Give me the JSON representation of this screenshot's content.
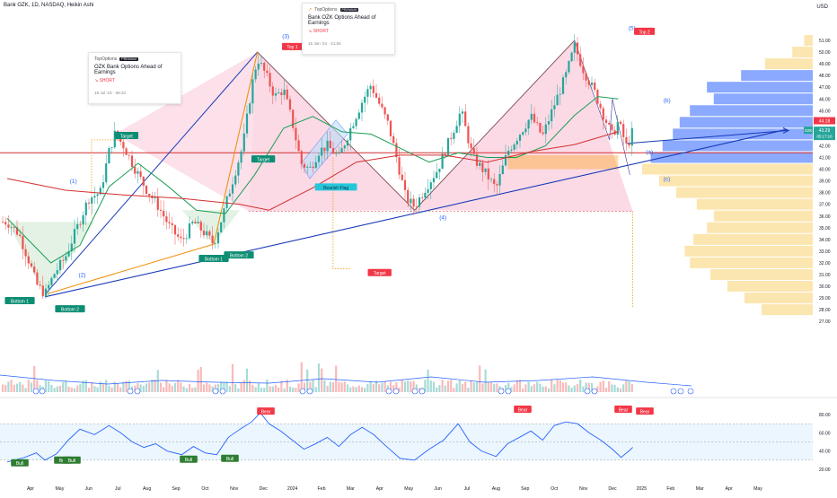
{
  "header": {
    "symbol_line": "Bank OZK, 1D, NASDAQ, Heikin Ashi",
    "currency": "USD"
  },
  "ideas": [
    {
      "brand": "TopOptions",
      "badge": "PREMIUM",
      "title": "OZK Bank Options Ahead of Earnings",
      "side": "SHORT",
      "date": "19 Jul '23 · 08:22"
    },
    {
      "brand": "TopOptions",
      "badge": "PREMIUM",
      "title": "Bank OZK Options Ahead of Earnings",
      "side": "SHORT",
      "date": "15 Jan '24 · 21:55"
    }
  ],
  "price_badges": {
    "current_symbol": "OZK",
    "current": "43.29",
    "countdown": "05:17:18",
    "red": "44.18"
  },
  "annotations": {
    "waves": [
      "(1)",
      "(2)",
      "(3)",
      "(4)",
      "(5)",
      "(a)",
      "(b)",
      "(c)"
    ],
    "labels": {
      "top1": "Top 1",
      "top2": "Top 2",
      "bottom1": "Bottom 1",
      "bottom2": "Bottom 2",
      "bottom1b": "Bottom 1",
      "bottom2b": "Bottom 2",
      "target": "Target",
      "bearish_flag": "Bearish Flag",
      "bull": "Bull",
      "bear": "Bear"
    }
  },
  "colors": {
    "up": "#26a69a",
    "down": "#ef5350",
    "ma_green": "#1b9e57",
    "ma_red": "#d32f2f",
    "trend_blue": "#1a3bb8",
    "fib_orange": "#f08c00",
    "rsi": "#2962ff"
  },
  "chart_data": [
    {
      "type": "candlestick",
      "title": "",
      "price_axis": {
        "ylim": [
          26.8,
          52.0
        ],
        "ticks": [
          "51.00",
          "50.00",
          "49.00",
          "48.00",
          "47.00",
          "46.00",
          "45.00",
          "44.00",
          "43.00",
          "42.00",
          "41.00",
          "40.00",
          "39.00",
          "38.00",
          "37.00",
          "36.00",
          "35.00",
          "34.00",
          "33.00",
          "32.00",
          "31.00",
          "30.00",
          "29.00",
          "28.00",
          "27.00"
        ]
      },
      "time_axis": {
        "ticks": [
          "Apr",
          "May",
          "Jun",
          "Jul",
          "Aug",
          "Sep",
          "Oct",
          "Nov",
          "Dec",
          "2024",
          "Feb",
          "Mar",
          "Apr",
          "May",
          "Jun",
          "Jul",
          "Aug",
          "Sep",
          "Oct",
          "Nov",
          "Dec",
          "2025",
          "Feb",
          "Mar",
          "Apr",
          "May"
        ]
      },
      "close_path": [
        {
          "m": 0.0,
          "p": 35.5
        },
        {
          "m": 0.4,
          "p": 34.5
        },
        {
          "m": 0.8,
          "p": 31.8
        },
        {
          "m": 1.0,
          "p": 30.2
        },
        {
          "m": 1.3,
          "p": 29.3
        },
        {
          "m": 1.6,
          "p": 31.0
        },
        {
          "m": 2.0,
          "p": 32.5
        },
        {
          "m": 2.4,
          "p": 35.0
        },
        {
          "m": 2.8,
          "p": 37.5
        },
        {
          "m": 3.2,
          "p": 38.0
        },
        {
          "m": 3.5,
          "p": 41.5
        },
        {
          "m": 3.7,
          "p": 43.0
        },
        {
          "m": 4.0,
          "p": 42.0
        },
        {
          "m": 4.4,
          "p": 40.0
        },
        {
          "m": 4.8,
          "p": 38.2
        },
        {
          "m": 5.2,
          "p": 36.8
        },
        {
          "m": 5.6,
          "p": 35.0
        },
        {
          "m": 6.0,
          "p": 33.8
        },
        {
          "m": 6.4,
          "p": 35.5
        },
        {
          "m": 6.8,
          "p": 34.5
        },
        {
          "m": 7.1,
          "p": 33.6
        },
        {
          "m": 7.4,
          "p": 36.0
        },
        {
          "m": 7.8,
          "p": 39.5
        },
        {
          "m": 8.1,
          "p": 42.0
        },
        {
          "m": 8.4,
          "p": 47.0
        },
        {
          "m": 8.6,
          "p": 49.5
        },
        {
          "m": 8.9,
          "p": 48.0
        },
        {
          "m": 9.2,
          "p": 46.2
        },
        {
          "m": 9.5,
          "p": 46.8
        },
        {
          "m": 9.8,
          "p": 44.0
        },
        {
          "m": 10.1,
          "p": 40.5
        },
        {
          "m": 10.4,
          "p": 40.0
        },
        {
          "m": 10.7,
          "p": 41.5
        },
        {
          "m": 11.0,
          "p": 42.0
        },
        {
          "m": 11.4,
          "p": 41.0
        },
        {
          "m": 11.8,
          "p": 43.5
        },
        {
          "m": 12.2,
          "p": 45.8
        },
        {
          "m": 12.5,
          "p": 47.2
        },
        {
          "m": 12.8,
          "p": 45.5
        },
        {
          "m": 13.1,
          "p": 43.8
        },
        {
          "m": 13.4,
          "p": 40.8
        },
        {
          "m": 13.7,
          "p": 37.5
        },
        {
          "m": 14.0,
          "p": 36.8
        },
        {
          "m": 14.4,
          "p": 38.5
        },
        {
          "m": 14.8,
          "p": 40.0
        },
        {
          "m": 15.2,
          "p": 42.5
        },
        {
          "m": 15.6,
          "p": 45.0
        },
        {
          "m": 16.0,
          "p": 41.0
        },
        {
          "m": 16.4,
          "p": 39.8
        },
        {
          "m": 16.8,
          "p": 38.3
        },
        {
          "m": 17.2,
          "p": 41.5
        },
        {
          "m": 17.6,
          "p": 43.0
        },
        {
          "m": 18.0,
          "p": 44.5
        },
        {
          "m": 18.4,
          "p": 42.8
        },
        {
          "m": 18.8,
          "p": 45.5
        },
        {
          "m": 19.2,
          "p": 48.0
        },
        {
          "m": 19.5,
          "p": 50.5
        },
        {
          "m": 19.8,
          "p": 48.5
        },
        {
          "m": 20.2,
          "p": 46.5
        },
        {
          "m": 20.5,
          "p": 44.6
        },
        {
          "m": 20.8,
          "p": 42.8
        },
        {
          "m": 21.0,
          "p": 44.1
        },
        {
          "m": 21.3,
          "p": 41.8
        },
        {
          "m": 21.5,
          "p": 43.3
        }
      ],
      "moving_averages": [
        {
          "name": "",
          "color": "green",
          "points": [
            {
              "m": 0.0,
              "p": 35.8
            },
            {
              "m": 1.5,
              "p": 32.0
            },
            {
              "m": 2.5,
              "p": 33.5
            },
            {
              "m": 3.5,
              "p": 38.5
            },
            {
              "m": 4.5,
              "p": 40.5
            },
            {
              "m": 5.5,
              "p": 38.6
            },
            {
              "m": 6.5,
              "p": 36.5
            },
            {
              "m": 7.5,
              "p": 36.2
            },
            {
              "m": 8.5,
              "p": 39.5
            },
            {
              "m": 9.5,
              "p": 43.5
            },
            {
              "m": 10.5,
              "p": 44.5
            },
            {
              "m": 11.5,
              "p": 43.2
            },
            {
              "m": 12.5,
              "p": 43.0
            },
            {
              "m": 13.5,
              "p": 41.8
            },
            {
              "m": 14.5,
              "p": 40.6
            },
            {
              "m": 15.5,
              "p": 41.4
            },
            {
              "m": 16.5,
              "p": 41.0
            },
            {
              "m": 17.5,
              "p": 41.0
            },
            {
              "m": 18.5,
              "p": 42.0
            },
            {
              "m": 19.5,
              "p": 44.6
            },
            {
              "m": 20.3,
              "p": 46.2
            },
            {
              "m": 21.0,
              "p": 46.0
            }
          ]
        },
        {
          "name": "",
          "color": "red",
          "points": [
            {
              "m": 0.0,
              "p": 39.2
            },
            {
              "m": 2.0,
              "p": 38.2
            },
            {
              "m": 4.0,
              "p": 37.8
            },
            {
              "m": 6.0,
              "p": 37.5
            },
            {
              "m": 8.0,
              "p": 37.0
            },
            {
              "m": 9.0,
              "p": 36.5
            },
            {
              "m": 10.5,
              "p": 38.4
            },
            {
              "m": 12.0,
              "p": 40.6
            },
            {
              "m": 13.5,
              "p": 41.2
            },
            {
              "m": 15.0,
              "p": 41.2
            },
            {
              "m": 16.5,
              "p": 40.6
            },
            {
              "m": 18.0,
              "p": 41.5
            },
            {
              "m": 19.5,
              "p": 42.1
            },
            {
              "m": 21.0,
              "p": 43.2
            }
          ]
        }
      ],
      "horizontal_levels": [
        41.4,
        36.4
      ],
      "volume_profile": [
        {
          "p": 51.0,
          "v": 0.05
        },
        {
          "p": 50.0,
          "v": 0.12
        },
        {
          "p": 49.0,
          "v": 0.28
        },
        {
          "p": 48.0,
          "v": 0.42
        },
        {
          "p": 47.0,
          "v": 0.62
        },
        {
          "p": 46.0,
          "v": 0.58
        },
        {
          "p": 45.0,
          "v": 0.72
        },
        {
          "p": 44.0,
          "v": 0.78
        },
        {
          "p": 43.0,
          "v": 0.82
        },
        {
          "p": 42.0,
          "v": 0.88
        },
        {
          "p": 41.0,
          "v": 0.95
        },
        {
          "p": 40.0,
          "v": 1.0
        },
        {
          "p": 39.0,
          "v": 0.9
        },
        {
          "p": 38.0,
          "v": 0.8
        },
        {
          "p": 37.0,
          "v": 0.68
        },
        {
          "p": 36.0,
          "v": 0.58
        },
        {
          "p": 35.0,
          "v": 0.62
        },
        {
          "p": 34.0,
          "v": 0.7
        },
        {
          "p": 33.0,
          "v": 0.75
        },
        {
          "p": 32.0,
          "v": 0.72
        },
        {
          "p": 31.0,
          "v": 0.6
        },
        {
          "p": 30.0,
          "v": 0.5
        },
        {
          "p": 29.0,
          "v": 0.4
        },
        {
          "p": 28.0,
          "v": 0.3
        }
      ]
    },
    {
      "type": "line",
      "title": "",
      "ylim": [
        15,
        87
      ],
      "ticks": [
        "80.00",
        "60.00",
        "40.00",
        "20.00"
      ],
      "band": [
        30,
        70
      ],
      "rsi_points": [
        {
          "m": 0.0,
          "p": 28
        },
        {
          "m": 0.6,
          "p": 33
        },
        {
          "m": 1.0,
          "p": 38
        },
        {
          "m": 1.3,
          "p": 30
        },
        {
          "m": 1.7,
          "p": 37
        },
        {
          "m": 2.1,
          "p": 52
        },
        {
          "m": 2.5,
          "p": 64
        },
        {
          "m": 3.0,
          "p": 58
        },
        {
          "m": 3.5,
          "p": 68
        },
        {
          "m": 3.9,
          "p": 60
        },
        {
          "m": 4.3,
          "p": 50
        },
        {
          "m": 4.7,
          "p": 44
        },
        {
          "m": 5.1,
          "p": 48
        },
        {
          "m": 5.5,
          "p": 40
        },
        {
          "m": 6.0,
          "p": 36
        },
        {
          "m": 6.4,
          "p": 45
        },
        {
          "m": 6.8,
          "p": 38
        },
        {
          "m": 7.2,
          "p": 36
        },
        {
          "m": 7.6,
          "p": 55
        },
        {
          "m": 8.0,
          "p": 64
        },
        {
          "m": 8.4,
          "p": 72
        },
        {
          "m": 8.7,
          "p": 82
        },
        {
          "m": 9.0,
          "p": 70
        },
        {
          "m": 9.4,
          "p": 62
        },
        {
          "m": 9.8,
          "p": 52
        },
        {
          "m": 10.2,
          "p": 42
        },
        {
          "m": 10.6,
          "p": 48
        },
        {
          "m": 11.0,
          "p": 55
        },
        {
          "m": 11.4,
          "p": 45
        },
        {
          "m": 11.8,
          "p": 58
        },
        {
          "m": 12.2,
          "p": 66
        },
        {
          "m": 12.6,
          "p": 58
        },
        {
          "m": 13.0,
          "p": 46
        },
        {
          "m": 13.5,
          "p": 32
        },
        {
          "m": 14.0,
          "p": 30
        },
        {
          "m": 14.5,
          "p": 42
        },
        {
          "m": 15.0,
          "p": 52
        },
        {
          "m": 15.5,
          "p": 70
        },
        {
          "m": 15.9,
          "p": 50
        },
        {
          "m": 16.3,
          "p": 40
        },
        {
          "m": 16.8,
          "p": 34
        },
        {
          "m": 17.2,
          "p": 48
        },
        {
          "m": 17.6,
          "p": 55
        },
        {
          "m": 18.0,
          "p": 62
        },
        {
          "m": 18.4,
          "p": 52
        },
        {
          "m": 18.8,
          "p": 68
        },
        {
          "m": 19.2,
          "p": 72
        },
        {
          "m": 19.6,
          "p": 70
        },
        {
          "m": 20.0,
          "p": 60
        },
        {
          "m": 20.4,
          "p": 52
        },
        {
          "m": 20.8,
          "p": 42
        },
        {
          "m": 21.1,
          "p": 33
        },
        {
          "m": 21.4,
          "p": 41
        },
        {
          "m": 21.5,
          "p": 44
        }
      ]
    }
  ]
}
